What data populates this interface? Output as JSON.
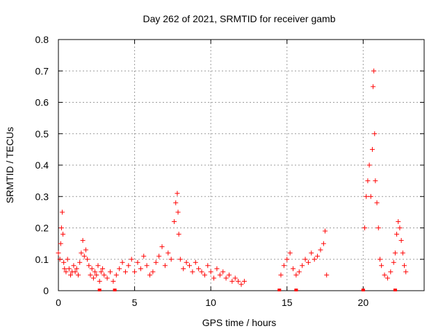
{
  "chart_data": {
    "type": "scatter",
    "title": "Day 262 of 2021, SRMTID for receiver gamb",
    "xlabel": "GPS time / hours",
    "ylabel": "SRMTID / TECUs",
    "xlim": [
      0,
      24
    ],
    "ylim": [
      0,
      0.8
    ],
    "xticks": [
      "0",
      "5",
      "10",
      "15",
      "20"
    ],
    "yticks": [
      "0",
      "0.1",
      "0.2",
      "0.3",
      "0.4",
      "0.5",
      "0.6",
      "0.7",
      "0.8"
    ],
    "grid": true,
    "marker": "+",
    "color": "#ff0000",
    "series": [
      {
        "name": "SRMTID",
        "x": [
          0.0,
          0.1,
          0.15,
          0.2,
          0.25,
          0.3,
          0.35,
          0.4,
          0.5,
          0.6,
          0.7,
          0.8,
          0.9,
          1.0,
          1.1,
          1.2,
          1.3,
          1.4,
          1.5,
          1.6,
          1.7,
          1.8,
          1.9,
          2.0,
          2.1,
          2.2,
          2.3,
          2.4,
          2.5,
          2.6,
          2.7,
          2.8,
          2.9,
          3.0,
          3.2,
          3.4,
          3.6,
          3.8,
          4.0,
          4.2,
          4.4,
          4.6,
          4.8,
          5.0,
          5.2,
          5.4,
          5.6,
          5.8,
          6.0,
          6.2,
          6.4,
          6.6,
          6.8,
          7.0,
          7.2,
          7.4,
          7.6,
          7.7,
          7.8,
          7.85,
          7.9,
          8.0,
          8.2,
          8.4,
          8.6,
          8.8,
          9.0,
          9.2,
          9.4,
          9.6,
          9.8,
          10.0,
          10.2,
          10.4,
          10.6,
          10.8,
          11.0,
          11.2,
          11.4,
          11.6,
          11.8,
          12.0,
          12.2,
          14.6,
          14.8,
          15.0,
          15.2,
          15.4,
          15.6,
          15.8,
          16.0,
          16.2,
          16.4,
          16.6,
          16.8,
          17.0,
          17.2,
          17.4,
          17.5,
          17.6,
          20.1,
          20.2,
          20.3,
          20.4,
          20.5,
          20.6,
          20.65,
          20.7,
          20.75,
          20.8,
          20.9,
          21.0,
          21.1,
          21.2,
          21.4,
          21.6,
          21.8,
          22.0,
          22.1,
          22.2,
          22.3,
          22.4,
          22.5,
          22.6,
          22.7,
          22.8
        ],
        "y": [
          0.12,
          0.1,
          0.15,
          0.2,
          0.25,
          0.18,
          0.09,
          0.07,
          0.06,
          0.1,
          0.07,
          0.05,
          0.06,
          0.08,
          0.06,
          0.07,
          0.05,
          0.09,
          0.12,
          0.16,
          0.11,
          0.13,
          0.1,
          0.08,
          0.05,
          0.07,
          0.04,
          0.06,
          0.05,
          0.08,
          0.03,
          0.06,
          0.07,
          0.05,
          0.04,
          0.06,
          0.03,
          0.05,
          0.07,
          0.09,
          0.06,
          0.08,
          0.1,
          0.06,
          0.09,
          0.07,
          0.11,
          0.08,
          0.05,
          0.06,
          0.09,
          0.11,
          0.14,
          0.08,
          0.12,
          0.1,
          0.22,
          0.28,
          0.31,
          0.25,
          0.18,
          0.1,
          0.07,
          0.09,
          0.08,
          0.06,
          0.09,
          0.07,
          0.06,
          0.05,
          0.08,
          0.06,
          0.04,
          0.07,
          0.05,
          0.06,
          0.04,
          0.05,
          0.03,
          0.04,
          0.03,
          0.02,
          0.03,
          0.05,
          0.08,
          0.1,
          0.12,
          0.07,
          0.05,
          0.06,
          0.08,
          0.1,
          0.09,
          0.12,
          0.1,
          0.11,
          0.13,
          0.15,
          0.19,
          0.05,
          0.2,
          0.3,
          0.35,
          0.4,
          0.3,
          0.45,
          0.65,
          0.7,
          0.5,
          0.35,
          0.28,
          0.2,
          0.1,
          0.08,
          0.05,
          0.04,
          0.06,
          0.09,
          0.12,
          0.18,
          0.22,
          0.2,
          0.16,
          0.12,
          0.08,
          0.06
        ],
        "gap_markers_x": [
          2.7,
          3.7,
          14.5,
          15.6,
          20.0,
          22.1
        ]
      }
    ]
  }
}
